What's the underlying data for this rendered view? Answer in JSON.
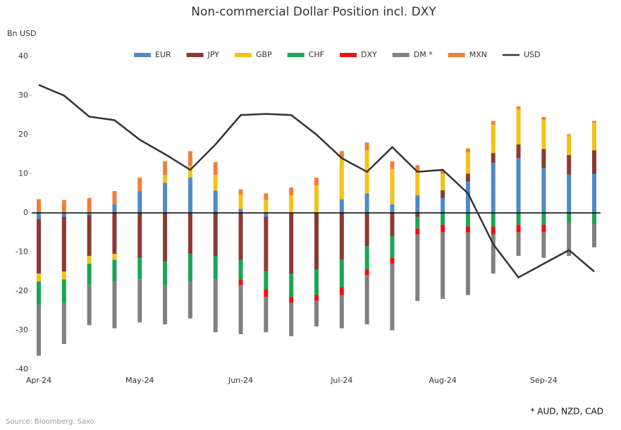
{
  "chart_data": {
    "type": "stacked-bar-line",
    "title": "Non-commercial Dollar Position incl. DXY",
    "y_axis_label": "Bn USD",
    "source": "Source: Bloomberg, Saxo",
    "footnote": "* AUD, NZD, CAD",
    "categories": [
      "Apr-24",
      null,
      null,
      null,
      "May-24",
      null,
      null,
      null,
      "Jun-24",
      null,
      null,
      null,
      "Jul-24",
      null,
      null,
      null,
      "Aug-24",
      null,
      null,
      null,
      "Sep-24",
      null,
      null
    ],
    "ylim": [
      -40,
      40
    ],
    "yticks": [
      -40,
      -30,
      -20,
      -10,
      0,
      10,
      20,
      30,
      40
    ],
    "legend_position": "top",
    "series": [
      {
        "name": "EUR",
        "color": "#4e8ac6",
        "values": [
          -1.5,
          -1,
          -0.5,
          2.2,
          5.5,
          7.7,
          9,
          5.7,
          1,
          -1,
          0,
          0,
          3.5,
          5,
          2.2,
          4.5,
          3.8,
          8,
          12.8,
          14,
          11.5,
          9.8,
          10
        ]
      },
      {
        "name": "JPY",
        "color": "#8b3a32",
        "values": [
          -14,
          -14,
          -10.5,
          -10.5,
          -11.5,
          -12.5,
          -10.5,
          -11,
          -12,
          -14,
          -15.5,
          -14.5,
          -12,
          -8.5,
          -6,
          -1,
          2,
          2,
          2.5,
          3.5,
          4.8,
          5,
          6
        ]
      },
      {
        "name": "GBP",
        "color": "#f2c314",
        "values": [
          -2,
          -2,
          -2,
          -1.5,
          0,
          2,
          3,
          4,
          3.7,
          3.3,
          4.5,
          7,
          10.5,
          11,
          9,
          6,
          4.2,
          5.5,
          7.2,
          9,
          7.5,
          5,
          7
        ]
      },
      {
        "name": "CHF",
        "color": "#1aa655",
        "values": [
          -6,
          -6,
          -5.5,
          -5.5,
          -5.5,
          -6,
          -7,
          -6,
          -5,
          -4.5,
          -6,
          -6.5,
          -7,
          -6,
          -5.5,
          -3,
          -3,
          -3.5,
          -3.5,
          -3,
          -3,
          -2.5,
          -2.8
        ]
      },
      {
        "name": "DXY",
        "color": "#ee1111",
        "values": [
          0,
          0,
          0,
          0,
          0,
          0,
          0,
          0,
          -1.5,
          -2,
          -1.5,
          -1.5,
          -2,
          -1.5,
          -1.5,
          -1.5,
          -2,
          -1.5,
          -2,
          -2,
          -2,
          0,
          0
        ]
      },
      {
        "name": "DM *",
        "color": "#808080",
        "values": [
          -13,
          -10.5,
          -10.2,
          -12,
          -11,
          -10,
          -9.5,
          -13.5,
          -12.5,
          -9,
          -8.5,
          -6.5,
          -8.5,
          -12.5,
          -17,
          -17,
          -17,
          -16,
          -10,
          -6,
          -6.5,
          -8.5,
          -6
        ]
      },
      {
        "name": "MXN",
        "color": "#f07f3c",
        "values": [
          3.5,
          3.3,
          3.8,
          3.4,
          3.5,
          3.5,
          3.8,
          3.3,
          1.3,
          1.7,
          2,
          2,
          1.8,
          2,
          2,
          1.7,
          0.8,
          1,
          1,
          0.7,
          0.7,
          0.3,
          0.5
        ]
      },
      {
        "name": "USD",
        "color": "#333333",
        "kind": "line",
        "values": [
          32.7,
          30,
          24.6,
          23.7,
          18.7,
          15,
          11,
          17.5,
          25,
          25.3,
          25,
          20,
          14,
          10.5,
          16.8,
          10.5,
          11,
          5,
          -8,
          -16.5,
          -13,
          -9.5,
          -15
        ]
      }
    ]
  }
}
